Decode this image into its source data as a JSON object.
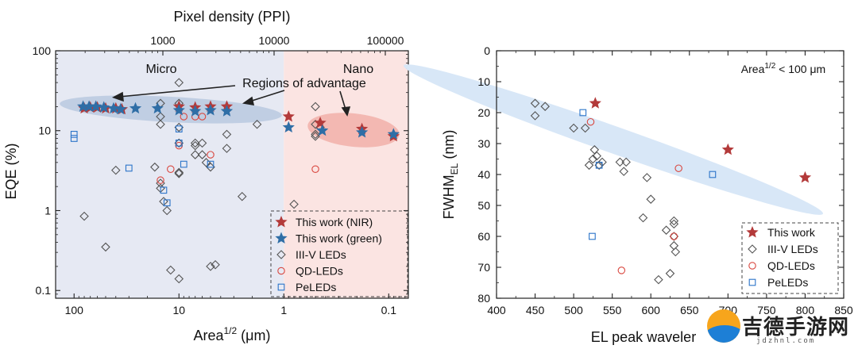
{
  "colors": {
    "nir": "#b33a3a",
    "green": "#2f6ea6",
    "gray": "#555555",
    "qd": "#d9463e",
    "pe": "#2b74c9",
    "micro_bg": "#e6e9f3",
    "nano_bg": "#fbe4e2",
    "micro_ellipse": "#b6c7de",
    "nano_ellipse": "#f0a9a2",
    "right_band": "#d8e7f7"
  },
  "left": {
    "top_axis_title": "Pixel density (PPI)",
    "top_ticks": [
      "1000",
      "10000",
      "100000"
    ],
    "x_title_main": "Area",
    "x_title_sup": "1/2",
    "x_title_tail": " (μm)",
    "x_ticks": [
      "100",
      "10",
      "1",
      "0.1"
    ],
    "y_title": "EQE (%)",
    "y_ticks": [
      "100",
      "10",
      "1",
      "0.1"
    ],
    "region_micro": "Micro",
    "region_nano": "Nano",
    "annotation": "Regions of advantage",
    "legend": [
      "This work (NIR)",
      "This work (green)",
      "III-V LEDs",
      "QD-LEDs",
      "PeLEDs"
    ]
  },
  "right": {
    "x_title": "EL peak waveler",
    "x_ticks": [
      "400",
      "450",
      "500",
      "550",
      "600",
      "650",
      "700",
      "750",
      "800",
      "850"
    ],
    "y_title_main": "FWHM",
    "y_title_sub": "EL",
    "y_title_tail": " (nm)",
    "y_ticks": [
      "0",
      "10",
      "20",
      "30",
      "40",
      "50",
      "60",
      "70",
      "80"
    ],
    "inset_main": "Area",
    "inset_sup": "1/2",
    "inset_tail": " < 100 μm",
    "legend": [
      "This work",
      "III-V LEDs",
      "QD-LEDs",
      "PeLEDs"
    ]
  },
  "watermark": {
    "text": "吉德手游网",
    "sub": "jdzhnl.com"
  },
  "chart_data": [
    {
      "type": "scatter",
      "x_scale": "log-reversed",
      "y_scale": "log",
      "xlim": [
        150,
        0.065
      ],
      "ylim": [
        0.08,
        100
      ],
      "top_axis": {
        "label": "Pixel density (PPI)",
        "ticks": [
          1000,
          10000,
          100000
        ]
      },
      "xlabel": "Area^1/2 (μm)",
      "ylabel": "EQE (%)",
      "series": [
        {
          "name": "This work (NIR)",
          "marker": "star",
          "points": [
            [
              80,
              19
            ],
            [
              70,
              19.5
            ],
            [
              60,
              19.5
            ],
            [
              50,
              19
            ],
            [
              40,
              19
            ],
            [
              35,
              18.5
            ],
            [
              10,
              20
            ],
            [
              7,
              19.5
            ],
            [
              5,
              20
            ],
            [
              3.5,
              20
            ],
            [
              0.9,
              15
            ],
            [
              0.45,
              12.5
            ],
            [
              0.18,
              10.5
            ],
            [
              0.09,
              8.5
            ]
          ]
        },
        {
          "name": "This work (green)",
          "marker": "star",
          "points": [
            [
              82,
              20
            ],
            [
              72,
              20
            ],
            [
              62,
              20
            ],
            [
              52,
              19.5
            ],
            [
              42,
              19
            ],
            [
              36,
              18.5
            ],
            [
              26,
              19
            ],
            [
              16,
              19
            ],
            [
              10,
              18
            ],
            [
              7,
              17.5
            ],
            [
              5,
              18
            ],
            [
              3.5,
              17.5
            ],
            [
              0.9,
              11
            ],
            [
              0.43,
              10
            ],
            [
              0.18,
              9.5
            ],
            [
              0.09,
              9
            ]
          ]
        },
        {
          "name": "III-V LEDs",
          "marker": "diamond",
          "points": [
            [
              80,
              0.85
            ],
            [
              50,
              0.35
            ],
            [
              40,
              3.2
            ],
            [
              17,
              3.5
            ],
            [
              15,
              12
            ],
            [
              15,
              15
            ],
            [
              15,
              22
            ],
            [
              15,
              1.9
            ],
            [
              15,
              2.2
            ],
            [
              14,
              1.3
            ],
            [
              13,
              1
            ],
            [
              12,
              0.18
            ],
            [
              10,
              40
            ],
            [
              10,
              22
            ],
            [
              10,
              11
            ],
            [
              10,
              7
            ],
            [
              10,
              3
            ],
            [
              10,
              2.9
            ],
            [
              10,
              0.14
            ],
            [
              7,
              7
            ],
            [
              7,
              6.5
            ],
            [
              7,
              5
            ],
            [
              6,
              7
            ],
            [
              6,
              5
            ],
            [
              5.5,
              4
            ],
            [
              5,
              3.5
            ],
            [
              5,
              0.2
            ],
            [
              4.5,
              0.21
            ],
            [
              3.5,
              9
            ],
            [
              3.5,
              6
            ],
            [
              2.5,
              1.5
            ],
            [
              1.8,
              12
            ],
            [
              0.8,
              1.2
            ],
            [
              0.5,
              20
            ],
            [
              0.5,
              12
            ],
            [
              0.5,
              9
            ],
            [
              0.5,
              8.5
            ],
            [
              0.45,
              11
            ]
          ]
        },
        {
          "name": "QD-LEDs",
          "marker": "circle",
          "points": [
            [
              15,
              2.4
            ],
            [
              12,
              3.3
            ],
            [
              9,
              15
            ],
            [
              7,
              15
            ],
            [
              6,
              15
            ],
            [
              5,
              5
            ],
            [
              10,
              6.5
            ],
            [
              0.5,
              3.3
            ]
          ]
        },
        {
          "name": "PeLEDs",
          "marker": "square",
          "points": [
            [
              100,
              9
            ],
            [
              100,
              8
            ],
            [
              30,
              3.4
            ],
            [
              14,
              1.8
            ],
            [
              13,
              1.25
            ],
            [
              10,
              10.5
            ],
            [
              10,
              7
            ],
            [
              9,
              3.8
            ],
            [
              5,
              3.8
            ]
          ]
        }
      ]
    },
    {
      "type": "scatter",
      "xlim": [
        400,
        850
      ],
      "ylim": [
        80,
        0
      ],
      "xlabel": "EL peak waveler",
      "ylabel": "FWHM_EL (nm)",
      "annotation": "Area^1/2 < 100 μm",
      "series": [
        {
          "name": "This work",
          "marker": "star",
          "points": [
            [
              528,
              17
            ],
            [
              700,
              32
            ],
            [
              800,
              41
            ]
          ]
        },
        {
          "name": "III-V LEDs",
          "marker": "diamond",
          "points": [
            [
              450,
              17
            ],
            [
              450,
              21
            ],
            [
              463,
              18
            ],
            [
              500,
              25
            ],
            [
              515,
              25
            ],
            [
              520,
              37
            ],
            [
              525,
              35
            ],
            [
              527,
              32
            ],
            [
              530,
              34
            ],
            [
              533,
              37
            ],
            [
              537,
              36
            ],
            [
              560,
              36
            ],
            [
              565,
              39
            ],
            [
              568,
              36
            ],
            [
              595,
              41
            ],
            [
              600,
              48
            ],
            [
              590,
              54
            ],
            [
              620,
              58
            ],
            [
              630,
              55
            ],
            [
              630,
              56
            ],
            [
              630,
              63
            ],
            [
              632,
              65
            ],
            [
              630,
              60
            ],
            [
              625,
              72
            ],
            [
              610,
              74
            ]
          ]
        },
        {
          "name": "QD-LEDs",
          "marker": "circle",
          "points": [
            [
              522,
              23
            ],
            [
              636,
              38
            ],
            [
              630,
              60
            ],
            [
              562,
              71
            ]
          ]
        },
        {
          "name": "PeLEDs",
          "marker": "square",
          "points": [
            [
              512,
              20
            ],
            [
              533,
              37
            ],
            [
              680,
              40
            ],
            [
              524,
              60
            ]
          ]
        }
      ]
    }
  ]
}
